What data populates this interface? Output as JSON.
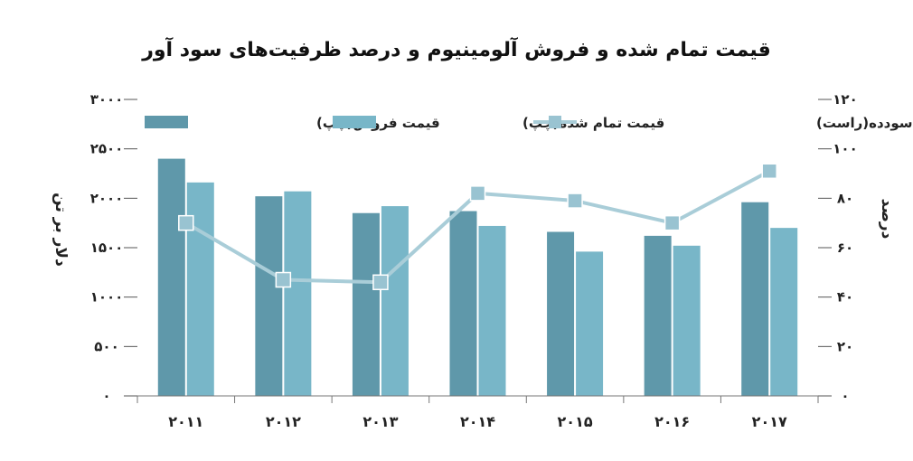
{
  "chart_data": {
    "type": "bar",
    "title": "قیمت تمام شده و فروش آلومینیوم و درصد ظرفیت‌های سود آور",
    "categories": [
      "۲۰۱۱",
      "۲۰۱۲",
      "۲۰۱۳",
      "۲۰۱۴",
      "۲۰۱۵",
      "۲۰۱۶",
      "۲۰۱۷"
    ],
    "series": [
      {
        "name": "قیمت فروش(چپ)",
        "type": "bar",
        "axis": "left",
        "color": "#5f98aa",
        "values": [
          2400,
          2020,
          1850,
          1870,
          1660,
          1620,
          1960
        ]
      },
      {
        "name": "قیمت تمام شده(چپ)",
        "type": "bar",
        "axis": "left",
        "color": "#78b6c8",
        "values": [
          2160,
          2070,
          1920,
          1720,
          1460,
          1520,
          1700
        ]
      },
      {
        "name": "درصد واحدهای ذوب سودده(راست)",
        "type": "line",
        "axis": "right",
        "color": "#a9cdd8",
        "values": [
          70,
          47,
          46,
          82,
          79,
          70,
          91
        ]
      }
    ],
    "left_axis": {
      "label": "دلار بر تن",
      "min": 0,
      "max": 3000,
      "ticks": [
        "۰",
        "۵۰۰",
        "۱۰۰۰",
        "۱۵۰۰",
        "۲۰۰۰",
        "۲۵۰۰",
        "۳۰۰۰"
      ]
    },
    "right_axis": {
      "label": "درصد",
      "min": 0,
      "max": 120,
      "ticks": [
        "۰",
        "۲۰",
        "۴۰",
        "۶۰",
        "۸۰",
        "۱۰۰",
        "۱۲۰"
      ]
    },
    "legend_position": "top",
    "grid": false
  }
}
